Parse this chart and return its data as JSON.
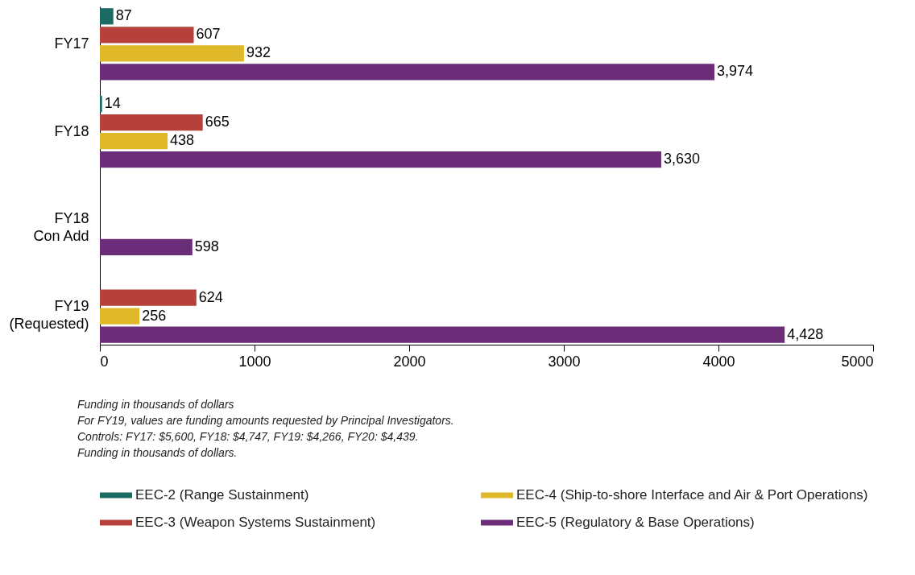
{
  "chart_data": {
    "type": "bar",
    "orientation": "horizontal",
    "categories": [
      "FY17",
      "FY18",
      "FY18\nCon Add",
      "FY19\n(Requested)"
    ],
    "series": [
      {
        "name": "EEC-2 (Range Sustainment)",
        "color": "#1c6b63",
        "values": [
          87,
          14,
          null,
          null
        ],
        "value_labels": [
          "87",
          "14",
          null,
          null
        ]
      },
      {
        "name": "EEC-3 (Weapon Systems Sustainment)",
        "color": "#b5413a",
        "values": [
          607,
          665,
          null,
          624
        ],
        "value_labels": [
          "607",
          "665",
          null,
          "624"
        ]
      },
      {
        "name": "EEC-4 (Ship-to-shore Interface and Air & Port Operations)",
        "color": "#e0b92b",
        "values": [
          932,
          438,
          null,
          256
        ],
        "value_labels": [
          "932",
          "438",
          null,
          "256"
        ]
      },
      {
        "name": "EEC-5 (Regulatory & Base Operations)",
        "color": "#6b2c78",
        "values": [
          3974,
          3630,
          598,
          4428
        ],
        "value_labels": [
          "3,974",
          "3,630",
          "598",
          "4,428"
        ]
      }
    ],
    "xlim": [
      0,
      5000
    ],
    "xticks": [
      0,
      1000,
      2000,
      3000,
      4000,
      5000
    ],
    "legend": "bottom",
    "annotations": [
      "Funding in thousands of dollars",
      "For FY19, values are funding amounts requested by Principal Investigators.",
      "Controls: FY17: $5,600, FY18: $4,747, FY19: $4,266, FY20: $4,439.",
      "Funding in thousands of dollars."
    ]
  }
}
